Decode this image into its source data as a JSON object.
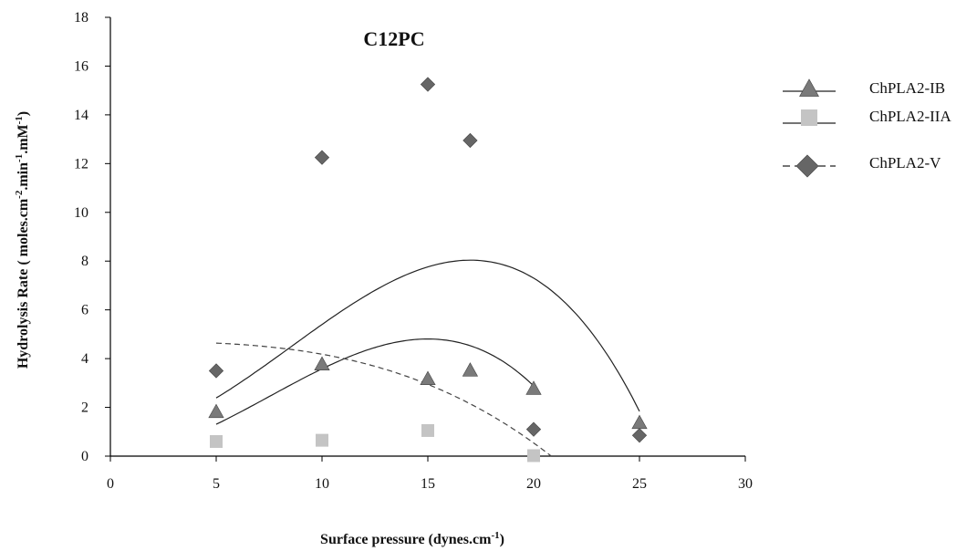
{
  "chart_data": {
    "type": "scatter",
    "title": "C12PC",
    "xlabel": "Surface pressure (dynes.cm",
    "xlabel_sup": "-1",
    "xlabel_end": ")",
    "ylabel_parts": [
      {
        "t": "Hydrolysis Rate ( moles.cm"
      },
      {
        "t": "-2",
        "sup": true
      },
      {
        "t": ".min"
      },
      {
        "t": "-1",
        "sup": true
      },
      {
        "t": ".mM"
      },
      {
        "t": "-1",
        "sup": true
      },
      {
        "t": ")"
      }
    ],
    "xlim": [
      0,
      30
    ],
    "ylim": [
      0,
      18
    ],
    "xticks": [
      0,
      5,
      10,
      15,
      20,
      25,
      30
    ],
    "yticks": [
      0,
      2,
      4,
      6,
      8,
      10,
      12,
      14,
      16,
      18
    ],
    "grid": false,
    "legend_position": "right",
    "series": [
      {
        "name": "ChPLA2-IB",
        "marker": "triangle",
        "color": "#7a7a7a",
        "line_style": "solid",
        "x": [
          5,
          10,
          15,
          17,
          20,
          25
        ],
        "y": [
          1.8,
          3.75,
          3.15,
          3.5,
          2.75,
          1.35
        ],
        "trend": [
          0.9,
          0.074,
          -0.0029
        ]
      },
      {
        "name": "ChPLA2-IIA",
        "marker": "square",
        "color": "#c4c4c4",
        "line_style": "solid",
        "x": [
          5,
          10,
          15,
          20
        ],
        "y": [
          0.6,
          0.65,
          1.05,
          0.02
        ],
        "trend": [
          0.08,
          0.063,
          -0.0028
        ]
      },
      {
        "name": "ChPLA2-V",
        "marker": "diamond",
        "color": "#666666",
        "line_style": "dashed",
        "x": [
          5,
          10,
          15,
          17,
          20,
          25
        ],
        "y": [
          3.5,
          12.25,
          15.25,
          12.95,
          1.1,
          0.85
        ],
        "trend": [
          4.7,
          0.0,
          -0.00052
        ]
      }
    ]
  }
}
